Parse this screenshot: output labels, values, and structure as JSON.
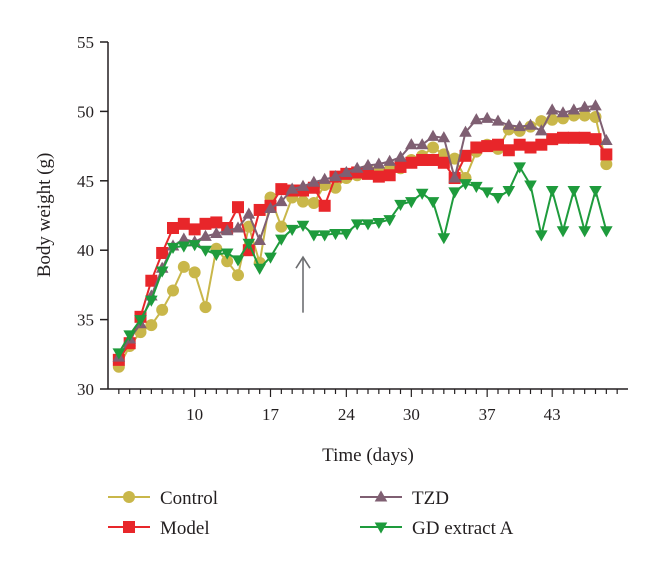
{
  "chart_data": {
    "type": "line",
    "xlabel": "Time (days)",
    "ylabel": "Body weight (g)",
    "xlim": [
      2,
      50
    ],
    "ylim": [
      30,
      55
    ],
    "x_ticks": [
      10,
      17,
      24,
      30,
      37,
      43
    ],
    "y_ticks": [
      30,
      35,
      40,
      45,
      50,
      55
    ],
    "grid": false,
    "legend_position": "bottom",
    "annotation": {
      "type": "arrow",
      "x": 20,
      "y_from": 35.5,
      "y_to": 39.5
    },
    "series": [
      {
        "name": "Control",
        "color": "#c9b74a",
        "marker": "circle",
        "x": [
          3,
          4,
          5,
          6,
          7,
          8,
          9,
          10,
          11,
          12,
          13,
          14,
          15,
          16,
          17,
          18,
          19,
          20,
          21,
          22,
          23,
          24,
          25,
          26,
          27,
          28,
          29,
          30,
          31,
          32,
          33,
          34,
          35,
          36,
          37,
          38,
          39,
          40,
          41,
          42,
          43,
          44,
          45,
          46,
          47,
          48
        ],
        "values": [
          31.6,
          33.1,
          34.1,
          34.6,
          35.7,
          37.1,
          38.8,
          38.4,
          35.9,
          40.1,
          39.2,
          38.2,
          41.7,
          39.1,
          43.8,
          41.7,
          43.8,
          43.5,
          43.4,
          44.7,
          44.5,
          45.2,
          45.4,
          45.8,
          45.6,
          45.8,
          45.9,
          46.5,
          46.8,
          47.4,
          46.9,
          46.6,
          45.2,
          47.1,
          47.6,
          47.3,
          48.7,
          48.6,
          48.9,
          49.3,
          49.4,
          49.5,
          49.7,
          49.7,
          49.6,
          46.2
        ]
      },
      {
        "name": "Model",
        "color": "#e8262a",
        "marker": "square",
        "x": [
          3,
          4,
          5,
          6,
          7,
          8,
          9,
          10,
          11,
          12,
          13,
          14,
          15,
          16,
          17,
          18,
          19,
          20,
          21,
          22,
          23,
          24,
          25,
          26,
          27,
          28,
          29,
          30,
          31,
          32,
          33,
          34,
          35,
          36,
          37,
          38,
          39,
          40,
          41,
          42,
          43,
          44,
          45,
          46,
          47,
          48
        ],
        "values": [
          32.1,
          33.3,
          35.2,
          37.8,
          39.8,
          41.6,
          41.9,
          41.5,
          41.9,
          42.0,
          41.6,
          43.1,
          40.0,
          42.9,
          43.2,
          44.4,
          44.3,
          44.3,
          44.5,
          43.2,
          45.3,
          45.5,
          45.6,
          45.5,
          45.3,
          45.4,
          46.0,
          46.3,
          46.5,
          46.5,
          46.3,
          45.2,
          46.8,
          47.4,
          47.5,
          47.6,
          47.2,
          47.6,
          47.4,
          47.6,
          48.0,
          48.1,
          48.1,
          48.1,
          48.0,
          46.9
        ]
      },
      {
        "name": "TZD",
        "color": "#7f5f72",
        "marker": "triangle-up",
        "x": [
          3,
          4,
          5,
          6,
          7,
          8,
          9,
          10,
          11,
          12,
          13,
          14,
          15,
          16,
          17,
          18,
          19,
          20,
          21,
          22,
          23,
          24,
          25,
          26,
          27,
          28,
          29,
          30,
          31,
          32,
          33,
          34,
          35,
          36,
          37,
          38,
          39,
          40,
          41,
          42,
          43,
          44,
          45,
          46,
          47,
          48
        ],
        "values": [
          32.3,
          33.6,
          34.7,
          36.7,
          38.7,
          40.3,
          40.8,
          40.6,
          41.0,
          41.2,
          41.4,
          41.6,
          42.6,
          40.7,
          43.0,
          43.5,
          44.4,
          44.6,
          44.9,
          45.1,
          45.3,
          45.6,
          45.9,
          46.1,
          46.2,
          46.4,
          46.7,
          47.6,
          47.6,
          48.2,
          48.1,
          45.2,
          48.5,
          49.4,
          49.5,
          49.3,
          49.0,
          48.9,
          49.0,
          48.6,
          50.1,
          49.9,
          50.1,
          50.3,
          50.4,
          47.9
        ]
      },
      {
        "name": "GD extract A",
        "color": "#1e9b3c",
        "marker": "triangle-down",
        "x": [
          3,
          4,
          5,
          6,
          7,
          8,
          9,
          10,
          11,
          12,
          13,
          14,
          15,
          16,
          17,
          18,
          19,
          20,
          21,
          22,
          23,
          24,
          25,
          26,
          27,
          28,
          29,
          30,
          31,
          32,
          33,
          34,
          35,
          36,
          37,
          38,
          39,
          40,
          41,
          42,
          43,
          44,
          45,
          46,
          47,
          48
        ],
        "values": [
          32.6,
          33.9,
          35.0,
          36.4,
          38.5,
          40.2,
          40.3,
          40.4,
          40.0,
          39.7,
          39.8,
          39.3,
          40.5,
          38.7,
          39.5,
          40.8,
          41.5,
          41.8,
          41.1,
          41.1,
          41.2,
          41.2,
          41.9,
          41.9,
          42.0,
          42.2,
          43.3,
          43.5,
          44.1,
          43.5,
          40.9,
          44.2,
          44.8,
          44.6,
          44.2,
          43.8,
          44.3,
          46.0,
          44.7,
          41.1,
          44.3,
          41.4,
          44.3,
          41.4,
          44.3,
          41.4
        ]
      }
    ]
  }
}
